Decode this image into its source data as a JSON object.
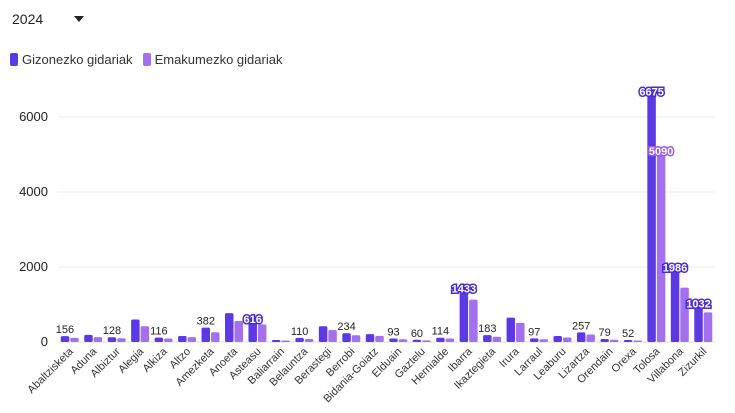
{
  "controls": {
    "year_value": "2024"
  },
  "legend": [
    {
      "label": "Gizonezko gidariak",
      "color": "#5b3ae6"
    },
    {
      "label": "Emakumezko gidariak",
      "color": "#a370ee"
    }
  ],
  "chart_data": {
    "type": "bar",
    "categories": [
      "Abaltzisketa",
      "Aduna",
      "Albiztur",
      "Alegia",
      "Alkiza",
      "Altzo",
      "Amezketa",
      "Anoeta",
      "Asteasu",
      "Baliarrain",
      "Belauntza",
      "Berastegi",
      "Berrobi",
      "Bidania-Goiatz",
      "Elduain",
      "Gaztelu",
      "Hernialde",
      "Ibarra",
      "Ikaztegieta",
      "Irura",
      "Larraul",
      "Leaburu",
      "Lizartza",
      "Orendain",
      "Orexa",
      "Tolosa",
      "Villabona",
      "Zizurkil"
    ],
    "series": [
      {
        "name": "Gizonezko gidariak",
        "values": [
          156,
          190,
          128,
          600,
          116,
          160,
          382,
          770,
          616,
          55,
          110,
          420,
          234,
          210,
          93,
          60,
          114,
          1433,
          183,
          650,
          97,
          160,
          257,
          79,
          52,
          6675,
          1986,
          1032
        ]
      },
      {
        "name": "Emakumezko gidariak",
        "values": [
          110,
          130,
          100,
          420,
          95,
          130,
          260,
          560,
          470,
          40,
          80,
          320,
          180,
          165,
          75,
          45,
          95,
          1130,
          140,
          510,
          75,
          120,
          200,
          60,
          40,
          5090,
          1450,
          790
        ]
      }
    ],
    "labels": [
      {
        "category": "Abaltzisketa",
        "series": 0,
        "text": "156"
      },
      {
        "category": "Albiztur",
        "series": 0,
        "text": "128"
      },
      {
        "category": "Alkiza",
        "series": 0,
        "text": "116"
      },
      {
        "category": "Amezketa",
        "series": 0,
        "text": "382"
      },
      {
        "category": "Asteasu",
        "series": 0,
        "text": "616"
      },
      {
        "category": "Belauntza",
        "series": 0,
        "text": "110"
      },
      {
        "category": "Berrobi",
        "series": 0,
        "text": "234"
      },
      {
        "category": "Elduain",
        "series": 0,
        "text": "93"
      },
      {
        "category": "Gaztelu",
        "series": 0,
        "text": "60"
      },
      {
        "category": "Hernialde",
        "series": 0,
        "text": "114"
      },
      {
        "category": "Ibarra",
        "series": 0,
        "text": "1433"
      },
      {
        "category": "Ikaztegieta",
        "series": 0,
        "text": "183"
      },
      {
        "category": "Larraul",
        "series": 0,
        "text": "97"
      },
      {
        "category": "Lizartza",
        "series": 0,
        "text": "257"
      },
      {
        "category": "Orendain",
        "series": 0,
        "text": "79"
      },
      {
        "category": "Orexa",
        "series": 0,
        "text": "52"
      },
      {
        "category": "Tolosa",
        "series": 0,
        "text": "6675"
      },
      {
        "category": "Tolosa",
        "series": 1,
        "text": "5090"
      },
      {
        "category": "Villabona",
        "series": 0,
        "text": "1986"
      },
      {
        "category": "Zizurkil",
        "series": 0,
        "text": "1032"
      }
    ],
    "yticks": [
      "0",
      "2000",
      "4000",
      "6000"
    ],
    "ylim": [
      0,
      7000
    ],
    "grid": true,
    "legend_position": "top-left"
  }
}
